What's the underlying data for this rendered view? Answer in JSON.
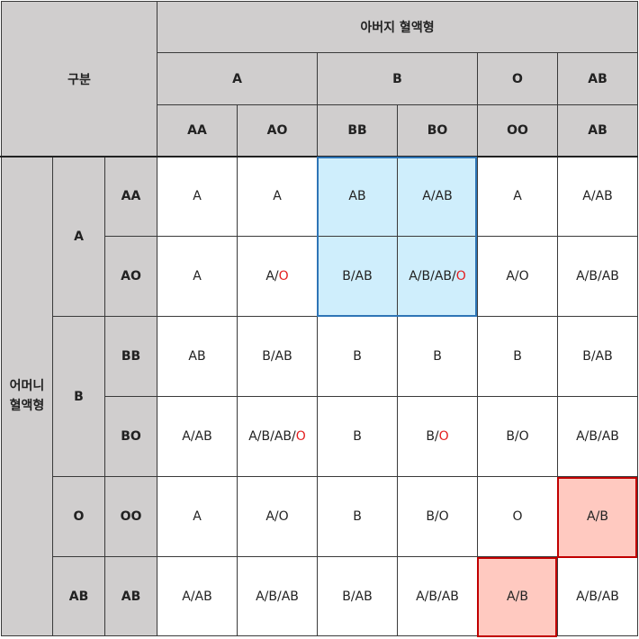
{
  "corner_label": "구분",
  "father_title": "아버지 혈액형",
  "mother_title_line1": "어머니",
  "mother_title_line2": "혈액형",
  "father_types": [
    "A",
    "B",
    "O",
    "AB"
  ],
  "father_genotypes": [
    "AA",
    "AO",
    "BB",
    "BO",
    "OO",
    "AB"
  ],
  "mother_types": [
    "A",
    "B",
    "O",
    "AB"
  ],
  "mother_genotypes": [
    "AA",
    "AO",
    "BB",
    "BO",
    "OO",
    "AB"
  ],
  "rows": [
    [
      {
        "main": "A",
        "red": ""
      },
      {
        "main": "A",
        "red": ""
      },
      {
        "main": "AB",
        "red": ""
      },
      {
        "main": "A/AB",
        "red": ""
      },
      {
        "main": "A",
        "red": ""
      },
      {
        "main": "A/AB",
        "red": ""
      }
    ],
    [
      {
        "main": "A",
        "red": ""
      },
      {
        "main": "A/",
        "red": "O"
      },
      {
        "main": "B/AB",
        "red": ""
      },
      {
        "main": "A/B/AB/",
        "red": "O"
      },
      {
        "main": "A/O",
        "red": ""
      },
      {
        "main": "A/B/AB",
        "red": ""
      }
    ],
    [
      {
        "main": "AB",
        "red": ""
      },
      {
        "main": "B/AB",
        "red": ""
      },
      {
        "main": "B",
        "red": ""
      },
      {
        "main": "B",
        "red": ""
      },
      {
        "main": "B",
        "red": ""
      },
      {
        "main": "B/AB",
        "red": ""
      }
    ],
    [
      {
        "main": "A/AB",
        "red": ""
      },
      {
        "main": "A/B/AB/",
        "red": "O"
      },
      {
        "main": "B",
        "red": ""
      },
      {
        "main": "B/",
        "red": "O"
      },
      {
        "main": "B/O",
        "red": ""
      },
      {
        "main": "A/B/AB",
        "red": ""
      }
    ],
    [
      {
        "main": "A",
        "red": ""
      },
      {
        "main": "A/O",
        "red": ""
      },
      {
        "main": "B",
        "red": ""
      },
      {
        "main": "B/O",
        "red": ""
      },
      {
        "main": "O",
        "red": ""
      },
      {
        "main": "A/B",
        "red": ""
      }
    ],
    [
      {
        "main": "A/AB",
        "red": ""
      },
      {
        "main": "A/B/AB",
        "red": ""
      },
      {
        "main": "B/AB",
        "red": ""
      },
      {
        "main": "A/B/AB",
        "red": ""
      },
      {
        "main": "A/B",
        "red": ""
      },
      {
        "main": "A/B/AB",
        "red": ""
      }
    ]
  ],
  "highlight_colors": {
    "blue_fill": "#cfeefc",
    "blue_border": "#2e75b6",
    "pink_fill": "#ffc9c0",
    "pink_border": "#c00000",
    "header_fill": "#d0cece",
    "emphasis_text": "#e31e1e"
  }
}
